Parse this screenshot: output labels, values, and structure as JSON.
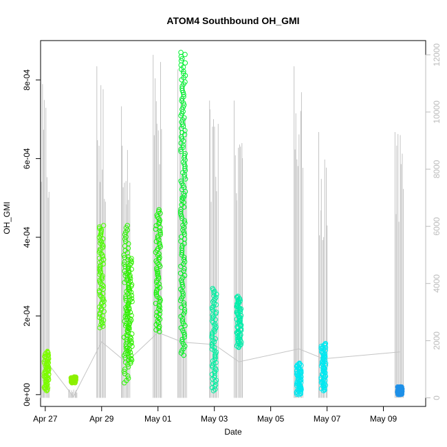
{
  "chart_data": {
    "type": "scatter",
    "title": "ATOM4 Southbound OH_GMI",
    "xlabel": "Date",
    "ylabel": "OH_GMI",
    "xlim": [
      "2018-04-26T20:00",
      "2018-05-10T12:00"
    ],
    "ylim": [
      -3e-05,
      0.0009
    ],
    "y2lim": [
      -300,
      12500
    ],
    "grid": false,
    "legend": "none",
    "x_ticks": [
      {
        "date": "2018-04-27",
        "label": "Apr 27"
      },
      {
        "date": "2018-04-29",
        "label": "Apr 29"
      },
      {
        "date": "2018-05-01",
        "label": "May 01"
      },
      {
        "date": "2018-05-03",
        "label": "May 03"
      },
      {
        "date": "2018-05-05",
        "label": "May 05"
      },
      {
        "date": "2018-05-07",
        "label": "May 07"
      },
      {
        "date": "2018-05-09",
        "label": "May 09"
      }
    ],
    "y_ticks": [
      {
        "value": 0,
        "label": "0e+00"
      },
      {
        "value": 0.0002,
        "label": "2e-04"
      },
      {
        "value": 0.0004,
        "label": "4e-04"
      },
      {
        "value": 0.0006,
        "label": "6e-04"
      },
      {
        "value": 0.0008,
        "label": "8e-04"
      }
    ],
    "y2_ticks": [
      {
        "value": 0,
        "label": "0"
      },
      {
        "value": 2000,
        "label": "2000"
      },
      {
        "value": 4000,
        "label": "4000"
      },
      {
        "value": 6000,
        "label": "6000"
      },
      {
        "value": 8000,
        "label": "8000"
      },
      {
        "value": 10000,
        "label": "10000"
      },
      {
        "value": 12000,
        "label": "12000"
      }
    ],
    "colors": {
      "axis": "#000000",
      "altitude_axis": "#bbbbbb",
      "altitude_line": "#c4c4c4"
    },
    "series": [
      {
        "date": "2018-04-27T01:00",
        "ymin": 1e-05,
        "ymax": 0.00011,
        "color": "#7cfc00"
      },
      {
        "date": "2018-04-28T00:00",
        "ymin": 3e-05,
        "ymax": 4.5e-05,
        "color": "#8cf000"
      },
      {
        "date": "2018-04-29T00:00",
        "ymin": 0.00017,
        "ymax": 0.00043,
        "color": "#4cfc00"
      },
      {
        "date": "2018-04-29T21:00",
        "ymin": 3e-05,
        "ymax": 0.00043,
        "color": "#2af400"
      },
      {
        "date": "2018-04-30T00:00",
        "ymin": 8e-05,
        "ymax": 0.00035,
        "color": "#30f000"
      },
      {
        "date": "2018-05-01T00:00",
        "ymin": 0.00016,
        "ymax": 0.00047,
        "color": "#10f400"
      },
      {
        "date": "2018-05-01T21:00",
        "ymin": 0.0001,
        "ymax": 0.0005,
        "color": "#00f020"
      },
      {
        "date": "2018-05-01T21:30",
        "ymin": 0.0005,
        "ymax": 0.00087,
        "color": "#00f030"
      },
      {
        "date": "2018-05-03T00:00",
        "ymin": 1e-05,
        "ymax": 0.00027,
        "color": "#00eea0"
      },
      {
        "date": "2018-05-03T21:00",
        "ymin": 0.00012,
        "ymax": 0.00025,
        "color": "#00eeaa"
      },
      {
        "date": "2018-05-06T00:00",
        "ymin": 0.0,
        "ymax": 8e-05,
        "color": "#00e8f0"
      },
      {
        "date": "2018-05-06T21:00",
        "ymin": 1e-05,
        "ymax": 0.00013,
        "color": "#00e8f0"
      },
      {
        "date": "2018-05-09T14:00",
        "ymin": 0.0,
        "ymax": 2e-05,
        "color": "#1e90e8"
      }
    ],
    "altitude": [
      {
        "date": "2018-04-27T00:00",
        "max": 11000
      },
      {
        "date": "2018-04-28T00:00",
        "max": 300
      },
      {
        "date": "2018-04-29T00:00",
        "max": 11600
      },
      {
        "date": "2018-04-29T21:00",
        "max": 10200
      },
      {
        "date": "2018-05-01T00:00",
        "max": 12000
      },
      {
        "date": "2018-05-01T21:00",
        "max": 11500
      },
      {
        "date": "2018-05-03T00:00",
        "max": 10400
      },
      {
        "date": "2018-05-03T21:00",
        "max": 10400
      },
      {
        "date": "2018-05-06T00:00",
        "max": 11600
      },
      {
        "date": "2018-05-06T21:00",
        "max": 9300
      },
      {
        "date": "2018-05-09T14:00",
        "max": 9300
      }
    ]
  }
}
